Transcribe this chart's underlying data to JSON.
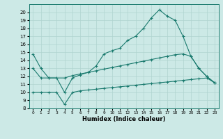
{
  "xlabel": "Humidex (Indice chaleur)",
  "xlim": [
    -0.5,
    23.5
  ],
  "ylim": [
    8,
    21
  ],
  "yticks": [
    8,
    9,
    10,
    11,
    12,
    13,
    14,
    15,
    16,
    17,
    18,
    19,
    20
  ],
  "xticks": [
    0,
    1,
    2,
    3,
    4,
    5,
    6,
    7,
    8,
    9,
    10,
    11,
    12,
    13,
    14,
    15,
    16,
    17,
    18,
    19,
    20,
    21,
    22,
    23
  ],
  "bg_color": "#cce9e6",
  "line_color": "#1a7a6e",
  "grid_color": "#b0d4d0",
  "line1_x": [
    0,
    1,
    2,
    3,
    4,
    5,
    6,
    7,
    8,
    9,
    10,
    11,
    12,
    13,
    14,
    15,
    16,
    17,
    18,
    19,
    20,
    21,
    22,
    23
  ],
  "line1_y": [
    14.8,
    13.0,
    11.8,
    11.8,
    10.0,
    11.8,
    12.2,
    12.5,
    13.3,
    14.8,
    15.2,
    15.5,
    16.5,
    17.0,
    18.0,
    19.3,
    20.3,
    19.5,
    19.0,
    17.0,
    14.5,
    13.0,
    12.0,
    11.2
  ],
  "line2_x": [
    0,
    1,
    2,
    4,
    5,
    6,
    7,
    8,
    9,
    10,
    11,
    12,
    13,
    14,
    15,
    16,
    17,
    18,
    19,
    20,
    21,
    22,
    23
  ],
  "line2_y": [
    13.0,
    11.8,
    11.8,
    11.8,
    12.1,
    12.3,
    12.5,
    12.7,
    12.9,
    13.1,
    13.3,
    13.5,
    13.7,
    13.9,
    14.1,
    14.3,
    14.5,
    14.7,
    14.8,
    14.5,
    13.0,
    12.0,
    11.2
  ],
  "line3_x": [
    0,
    1,
    2,
    3,
    4,
    5,
    6,
    7,
    8,
    9,
    10,
    11,
    12,
    13,
    14,
    15,
    16,
    17,
    18,
    19,
    20,
    21,
    22,
    23
  ],
  "line3_y": [
    10.0,
    10.0,
    10.0,
    10.0,
    8.5,
    10.0,
    10.2,
    10.3,
    10.4,
    10.5,
    10.6,
    10.7,
    10.8,
    10.9,
    11.0,
    11.1,
    11.2,
    11.3,
    11.4,
    11.5,
    11.6,
    11.7,
    11.8,
    11.2
  ]
}
